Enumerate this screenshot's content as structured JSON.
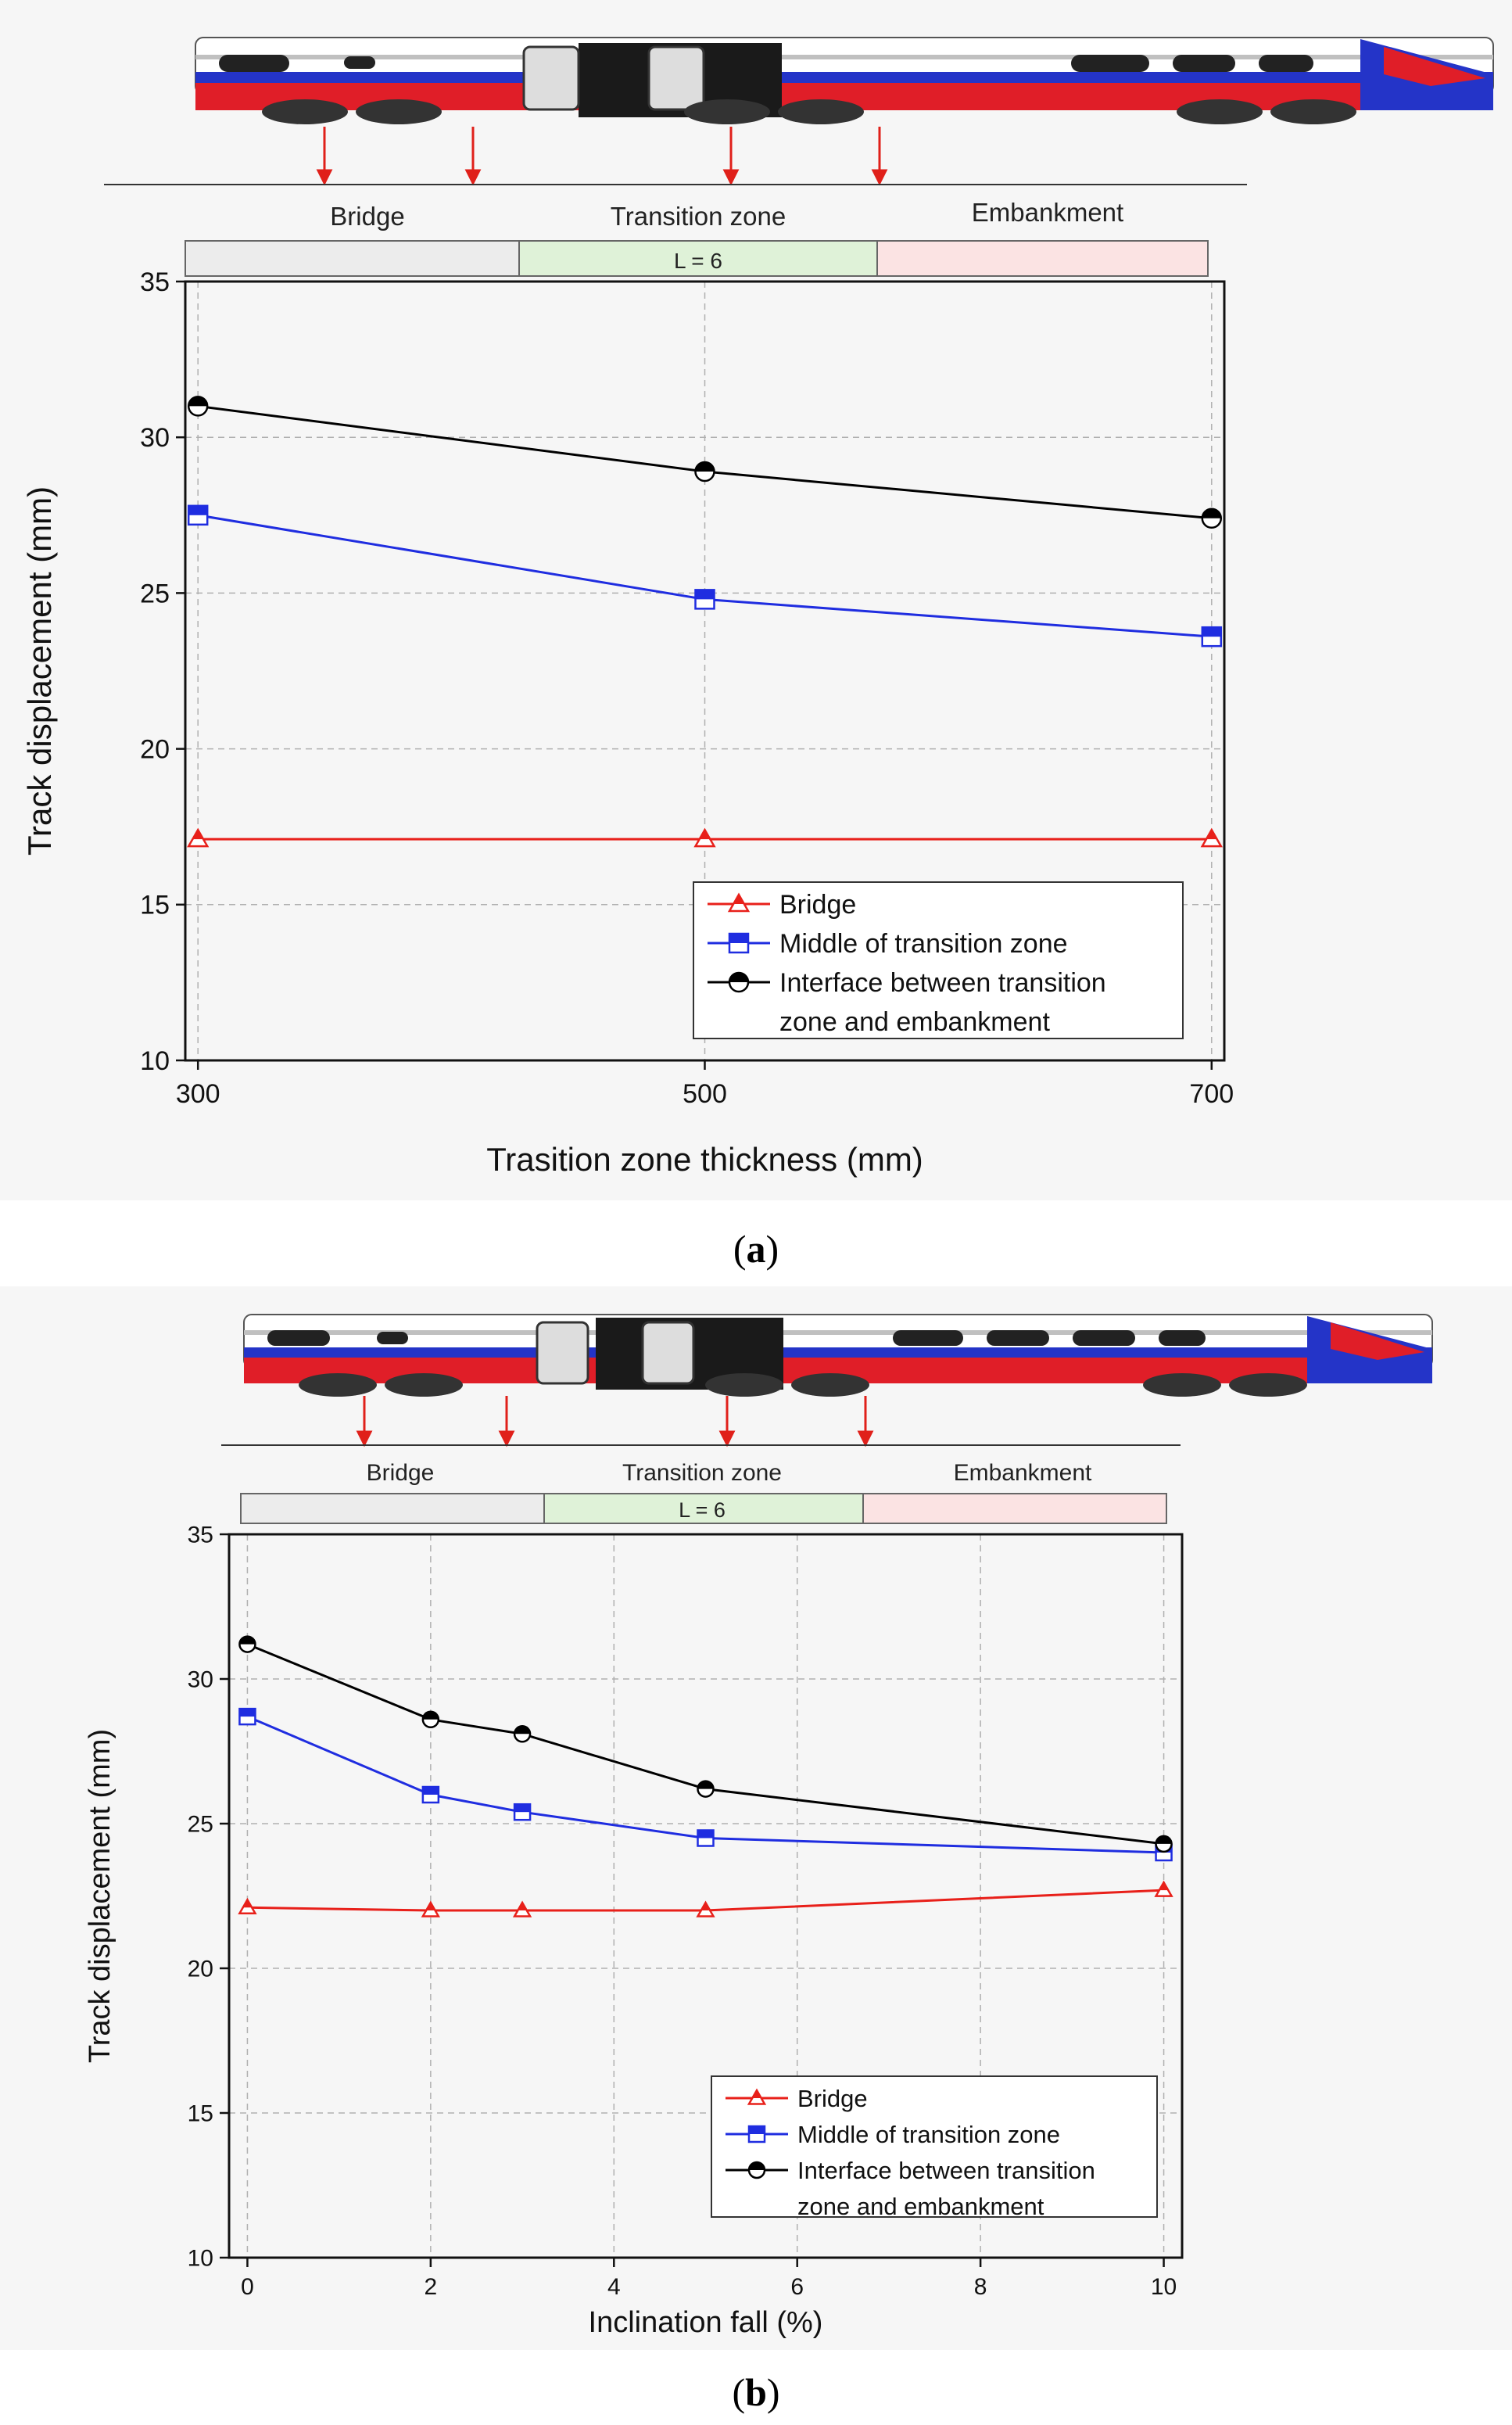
{
  "panels": [
    {
      "id": "a",
      "caption_open": "(",
      "caption_letter": "a",
      "caption_close": ")",
      "segments": [
        "Bridge",
        "Transition zone",
        "Embankment"
      ],
      "transition_length_label": "L = 6",
      "chart_data": {
        "type": "line",
        "title": "",
        "xlabel": "Trasition zone thickness (mm)",
        "ylabel": "Track displacement (mm)",
        "x": [
          300,
          500,
          700
        ],
        "xlim": [
          295,
          705
        ],
        "ylim": [
          10,
          35
        ],
        "xticks": [
          300,
          500,
          700
        ],
        "yticks": [
          10,
          15,
          20,
          25,
          30,
          35
        ],
        "grid": true,
        "legend_position": "lower-right",
        "series": [
          {
            "name": "Bridge",
            "color": "#e8201a",
            "marker": "triangle",
            "values": [
              17.1,
              17.1,
              17.1
            ]
          },
          {
            "name": "Middle of transition zone",
            "color": "#1f2de0",
            "marker": "square",
            "values": [
              27.5,
              24.8,
              23.6
            ]
          },
          {
            "name": "Interface between transition zone and embankment",
            "color": "#000000",
            "marker": "half-circle",
            "values": [
              31.0,
              28.9,
              27.4
            ]
          }
        ],
        "legend_labels": [
          [
            "Bridge"
          ],
          [
            "Middle of transition zone"
          ],
          [
            "Interface between transition",
            "zone and embankment"
          ]
        ]
      }
    },
    {
      "id": "b",
      "caption_open": "(",
      "caption_letter": "b",
      "caption_close": ")",
      "segments": [
        "Bridge",
        "Transition zone",
        "Embankment"
      ],
      "transition_length_label": "L = 6",
      "chart_data": {
        "type": "line",
        "title": "",
        "xlabel": "Inclination fall (%)",
        "ylabel": "Track displacement (mm)",
        "x": [
          0,
          2,
          3,
          5,
          10
        ],
        "xlim": [
          -0.2,
          10.2
        ],
        "ylim": [
          10,
          35
        ],
        "xticks": [
          0,
          2,
          4,
          6,
          8,
          10
        ],
        "yticks": [
          10,
          15,
          20,
          25,
          30,
          35
        ],
        "grid": true,
        "legend_position": "lower-right",
        "series": [
          {
            "name": "Bridge",
            "color": "#e8201a",
            "marker": "triangle",
            "values": [
              22.1,
              22.0,
              22.0,
              22.0,
              22.7
            ]
          },
          {
            "name": "Middle of transition zone",
            "color": "#1f2de0",
            "marker": "square",
            "values": [
              28.7,
              26.0,
              25.4,
              24.5,
              24.0
            ]
          },
          {
            "name": "Interface between transition zone and embankment",
            "color": "#000000",
            "marker": "half-circle",
            "values": [
              31.2,
              28.6,
              28.1,
              26.2,
              24.3
            ]
          }
        ],
        "legend_labels": [
          [
            "Bridge"
          ],
          [
            "Middle of transition zone"
          ],
          [
            "Interface between transition",
            "zone and embankment"
          ]
        ]
      }
    }
  ],
  "colors": {
    "bridge_strip": "#ececec",
    "transition_strip": "#dff2d8",
    "embankment_strip": "#fbe3e3",
    "grid": "#b0b0b0",
    "arrow": "#e0201a",
    "train_red": "#e01e28",
    "train_blue": "#2434c8"
  }
}
